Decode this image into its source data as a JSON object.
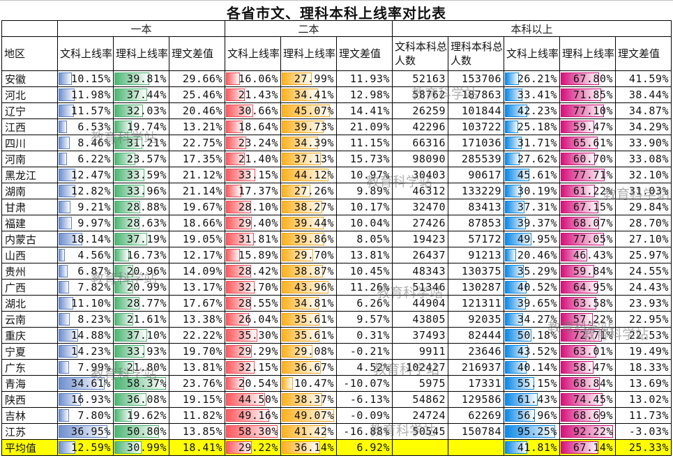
{
  "title": "各省市文、理科本科上线率对比表",
  "groups": {
    "yiben": "一本",
    "erben": "二本",
    "benke": "本科以上"
  },
  "headers": {
    "region": "地区",
    "yiben_wen": "文科上线率",
    "yiben_li": "理科上线率",
    "yiben_diff": "理文差值",
    "erben_wen": "文科上线率",
    "erben_li": "理科上线率",
    "erben_diff": "理文差值",
    "wen_total": "文科本科总人数",
    "li_total": "理科本科总人数",
    "benke_wen": "文科上线率",
    "benke_li": "理科上线率",
    "benke_diff": "理文差值"
  },
  "bar_colors": {
    "yiben_wen": "#6f8fce",
    "yiben_li": "#4db573",
    "erben_wen": "#ff5a5f",
    "erben_li": "#ffb21f",
    "benke_wen": "#0b88e6",
    "benke_li": "#d6117b"
  },
  "average_row_color": "#ffff00",
  "watermark": "教育科学站",
  "rows": [
    {
      "region": "安徽",
      "y1w": "10.15%",
      "y1l": "39.81%",
      "y1d": "29.66%",
      "e2w": "16.06%",
      "e2l": "27.99%",
      "e2d": "11.93%",
      "wt": "52163",
      "lt": "153706",
      "bw": "26.21%",
      "bl": "67.80%",
      "bd": "41.59%"
    },
    {
      "region": "河北",
      "y1w": "11.98%",
      "y1l": "37.44%",
      "y1d": "25.46%",
      "e2w": "21.43%",
      "e2l": "34.41%",
      "e2d": "12.98%",
      "wt": "58762",
      "lt": "187863",
      "bw": "33.41%",
      "bl": "71.85%",
      "bd": "38.44%"
    },
    {
      "region": "辽宁",
      "y1w": "11.57%",
      "y1l": "32.03%",
      "y1d": "20.46%",
      "e2w": "30.66%",
      "e2l": "45.07%",
      "e2d": "14.41%",
      "wt": "26259",
      "lt": "101844",
      "bw": "42.23%",
      "bl": "77.10%",
      "bd": "34.87%"
    },
    {
      "region": "江西",
      "y1w": "6.53%",
      "y1l": "19.74%",
      "y1d": "13.21%",
      "e2w": "18.64%",
      "e2l": "39.73%",
      "e2d": "21.09%",
      "wt": "42296",
      "lt": "103722",
      "bw": "25.18%",
      "bl": "59.47%",
      "bd": "34.29%"
    },
    {
      "region": "四川",
      "y1w": "8.46%",
      "y1l": "31.21%",
      "y1d": "22.75%",
      "e2w": "23.24%",
      "e2l": "34.39%",
      "e2d": "11.15%",
      "wt": "66316",
      "lt": "171036",
      "bw": "31.71%",
      "bl": "65.61%",
      "bd": "33.90%"
    },
    {
      "region": "河南",
      "y1w": "6.22%",
      "y1l": "23.57%",
      "y1d": "17.35%",
      "e2w": "21.40%",
      "e2l": "37.13%",
      "e2d": "15.73%",
      "wt": "98090",
      "lt": "285539",
      "bw": "27.62%",
      "bl": "60.70%",
      "bd": "33.08%"
    },
    {
      "region": "黑龙江",
      "y1w": "12.47%",
      "y1l": "33.59%",
      "y1d": "21.12%",
      "e2w": "33.15%",
      "e2l": "44.12%",
      "e2d": "10.97%",
      "wt": "30403",
      "lt": "90617",
      "bw": "45.61%",
      "bl": "77.71%",
      "bd": "32.10%"
    },
    {
      "region": "湖南",
      "y1w": "12.82%",
      "y1l": "33.96%",
      "y1d": "21.14%",
      "e2w": "17.37%",
      "e2l": "27.26%",
      "e2d": "9.89%",
      "wt": "46312",
      "lt": "133229",
      "bw": "30.19%",
      "bl": "61.22%",
      "bd": "31.03%"
    },
    {
      "region": "甘肃",
      "y1w": "9.21%",
      "y1l": "28.88%",
      "y1d": "19.67%",
      "e2w": "28.10%",
      "e2l": "38.27%",
      "e2d": "10.17%",
      "wt": "32470",
      "lt": "83413",
      "bw": "37.31%",
      "bl": "67.15%",
      "bd": "29.84%"
    },
    {
      "region": "福建",
      "y1w": "9.97%",
      "y1l": "28.63%",
      "y1d": "18.66%",
      "e2w": "29.40%",
      "e2l": "39.44%",
      "e2d": "10.04%",
      "wt": "27426",
      "lt": "87853",
      "bw": "39.37%",
      "bl": "68.07%",
      "bd": "28.70%"
    },
    {
      "region": "内蒙古",
      "y1w": "18.14%",
      "y1l": "37.19%",
      "y1d": "19.05%",
      "e2w": "31.81%",
      "e2l": "39.86%",
      "e2d": "8.05%",
      "wt": "19423",
      "lt": "57172",
      "bw": "49.95%",
      "bl": "77.05%",
      "bd": "27.10%"
    },
    {
      "region": "山西",
      "y1w": "4.56%",
      "y1l": "16.73%",
      "y1d": "12.17%",
      "e2w": "15.89%",
      "e2l": "29.70%",
      "e2d": "13.81%",
      "wt": "26437",
      "lt": "91213",
      "bw": "20.46%",
      "bl": "46.43%",
      "bd": "25.97%"
    },
    {
      "region": "贵州",
      "y1w": "6.87%",
      "y1l": "20.96%",
      "y1d": "14.09%",
      "e2w": "28.42%",
      "e2l": "38.87%",
      "e2d": "10.45%",
      "wt": "48343",
      "lt": "130375",
      "bw": "35.29%",
      "bl": "59.84%",
      "bd": "24.55%"
    },
    {
      "region": "广西",
      "y1w": "7.82%",
      "y1l": "20.99%",
      "y1d": "13.17%",
      "e2w": "32.70%",
      "e2l": "43.96%",
      "e2d": "11.26%",
      "wt": "51346",
      "lt": "130287",
      "bw": "40.52%",
      "bl": "64.95%",
      "bd": "24.43%"
    },
    {
      "region": "湖北",
      "y1w": "11.10%",
      "y1l": "28.77%",
      "y1d": "17.67%",
      "e2w": "28.55%",
      "e2l": "34.81%",
      "e2d": "6.26%",
      "wt": "44904",
      "lt": "121311",
      "bw": "39.65%",
      "bl": "63.58%",
      "bd": "23.93%"
    },
    {
      "region": "云南",
      "y1w": "8.23%",
      "y1l": "21.61%",
      "y1d": "13.38%",
      "e2w": "26.04%",
      "e2l": "35.61%",
      "e2d": "9.57%",
      "wt": "43805",
      "lt": "92035",
      "bw": "34.27%",
      "bl": "57.22%",
      "bd": "22.95%"
    },
    {
      "region": "重庆",
      "y1w": "14.88%",
      "y1l": "37.10%",
      "y1d": "22.22%",
      "e2w": "35.30%",
      "e2l": "35.61%",
      "e2d": "0.31%",
      "wt": "37493",
      "lt": "82444",
      "bw": "50.18%",
      "bl": "72.71%",
      "bd": "22.53%"
    },
    {
      "region": "宁夏",
      "y1w": "14.23%",
      "y1l": "33.93%",
      "y1d": "19.70%",
      "e2w": "29.29%",
      "e2l": "29.08%",
      "e2d": "-0.21%",
      "wt": "9911",
      "lt": "23646",
      "bw": "43.52%",
      "bl": "63.01%",
      "bd": "19.49%"
    },
    {
      "region": "广东",
      "y1w": "7.99%",
      "y1l": "21.80%",
      "y1d": "13.81%",
      "e2w": "32.15%",
      "e2l": "36.67%",
      "e2d": "4.52%",
      "wt": "102427",
      "lt": "216937",
      "bw": "40.14%",
      "bl": "58.47%",
      "bd": "18.33%"
    },
    {
      "region": "青海",
      "y1w": "34.61%",
      "y1l": "58.37%",
      "y1d": "23.76%",
      "e2w": "20.54%",
      "e2l": "10.47%",
      "e2d": "-10.07%",
      "wt": "5975",
      "lt": "17331",
      "bw": "55.15%",
      "bl": "68.84%",
      "bd": "13.69%"
    },
    {
      "region": "陕西",
      "y1w": "16.93%",
      "y1l": "36.08%",
      "y1d": "19.15%",
      "e2w": "44.50%",
      "e2l": "38.37%",
      "e2d": "-6.13%",
      "wt": "54862",
      "lt": "129586",
      "bw": "61.43%",
      "bl": "74.45%",
      "bd": "13.02%"
    },
    {
      "region": "吉林",
      "y1w": "7.80%",
      "y1l": "19.62%",
      "y1d": "11.82%",
      "e2w": "49.16%",
      "e2l": "49.07%",
      "e2d": "-0.09%",
      "wt": "24724",
      "lt": "62269",
      "bw": "56.96%",
      "bl": "68.69%",
      "bd": "11.73%"
    },
    {
      "region": "江苏",
      "y1w": "36.95%",
      "y1l": "50.80%",
      "y1d": "13.85%",
      "e2w": "58.30%",
      "e2l": "41.42%",
      "e2d": "-16.88%",
      "wt": "50545",
      "lt": "150784",
      "bw": "95.25%",
      "bl": "92.22%",
      "bd": "-3.03%"
    }
  ],
  "average": {
    "region": "平均值",
    "y1w": "12.59%",
    "y1l": "30.99%",
    "y1d": "18.41%",
    "e2w": "29.22%",
    "e2l": "36.14%",
    "e2d": "6.92%",
    "wt": "",
    "lt": "",
    "bw": "41.81%",
    "bl": "67.14%",
    "bd": "25.33%"
  }
}
